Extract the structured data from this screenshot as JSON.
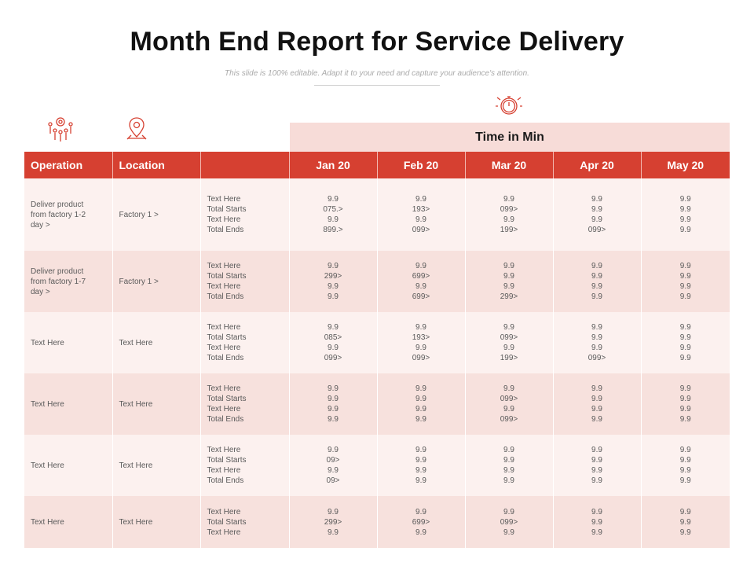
{
  "title": "Month End Report for Service Delivery",
  "subtitle": "This slide is 100% editable. Adapt it to your need and capture your audience's attention.",
  "icons": {
    "operation": "people-network-icon",
    "location": "location-pin-icon",
    "time": "stopwatch-icon"
  },
  "colors": {
    "accent": "#d64031",
    "band": "#f7dcd8",
    "row_odd": "#fcf1ef",
    "row_even": "#f7e1dd"
  },
  "time_header": "Time in Min",
  "headers": {
    "operation": "Operation",
    "location": "Location",
    "months": [
      "Jan 20",
      "Feb 20",
      "Mar 20",
      "Apr 20",
      "May 20"
    ]
  },
  "rows": [
    {
      "operation": "Deliver product from factory 1-2 day >",
      "location": "Factory 1 >",
      "labels": [
        "Text Here",
        "Total Starts",
        "Text Here",
        "Total Ends"
      ],
      "months": [
        [
          "9.9",
          "075.>",
          "9.9",
          "899.>"
        ],
        [
          "9.9",
          "193>",
          "9.9",
          "099>"
        ],
        [
          "9.9",
          "099>",
          "9.9",
          "199>"
        ],
        [
          "9.9",
          "9.9",
          "9.9",
          "099>"
        ],
        [
          "9.9",
          "9.9",
          "9.9",
          "9.9"
        ]
      ]
    },
    {
      "operation": "Deliver product from factory 1-7 day >",
      "location": "Factory 1 >",
      "labels": [
        "Text Here",
        "Total Starts",
        "Text Here",
        "Total Ends"
      ],
      "months": [
        [
          "9.9",
          "299>",
          "9.9",
          "9.9"
        ],
        [
          "9.9",
          "699>",
          "9.9",
          "699>"
        ],
        [
          "9.9",
          "9.9",
          "9.9",
          "299>"
        ],
        [
          "9.9",
          "9.9",
          "9.9",
          "9.9"
        ],
        [
          "9.9",
          "9.9",
          "9.9",
          "9.9"
        ]
      ]
    },
    {
      "operation": "Text Here",
      "location": "Text Here",
      "labels": [
        "Text Here",
        "Total Starts",
        "Text Here",
        "Total Ends"
      ],
      "months": [
        [
          "9.9",
          "085>",
          "9.9",
          "099>"
        ],
        [
          "9.9",
          "193>",
          "9.9",
          "099>"
        ],
        [
          "9.9",
          "099>",
          "9.9",
          "199>"
        ],
        [
          "9.9",
          "9.9",
          "9.9",
          "099>"
        ],
        [
          "9.9",
          "9.9",
          "9.9",
          "9.9"
        ]
      ]
    },
    {
      "operation": "Text Here",
      "location": "Text Here",
      "labels": [
        "Text Here",
        "Total Starts",
        "Text Here",
        "Total Ends"
      ],
      "months": [
        [
          "9.9",
          "9.9",
          "9.9",
          "9.9"
        ],
        [
          "9.9",
          "9.9",
          "9.9",
          "9.9"
        ],
        [
          "9.9",
          "099>",
          "9.9",
          "099>"
        ],
        [
          "9.9",
          "9.9",
          "9.9",
          "9.9"
        ],
        [
          "9.9",
          "9.9",
          "9.9",
          "9.9"
        ]
      ]
    },
    {
      "operation": "Text Here",
      "location": "Text Here",
      "labels": [
        "Text Here",
        "Total Starts",
        "Text Here",
        "Total Ends"
      ],
      "months": [
        [
          "9.9",
          "09>",
          "9.9",
          "09>"
        ],
        [
          "9.9",
          "9.9",
          "9.9",
          "9.9"
        ],
        [
          "9.9",
          "9.9",
          "9.9",
          "9.9"
        ],
        [
          "9.9",
          "9.9",
          "9.9",
          "9.9"
        ],
        [
          "9.9",
          "9.9",
          "9.9",
          "9.9"
        ]
      ]
    },
    {
      "operation": "Text Here",
      "location": "Text Here",
      "labels": [
        "Text Here",
        "Total Starts",
        "Text Here"
      ],
      "months": [
        [
          "9.9",
          "299>",
          "9.9"
        ],
        [
          "9.9",
          "699>",
          "9.9"
        ],
        [
          "9.9",
          "099>",
          "9.9"
        ],
        [
          "9.9",
          "9.9",
          "9.9"
        ],
        [
          "9.9",
          "9.9",
          "9.9"
        ]
      ]
    }
  ]
}
